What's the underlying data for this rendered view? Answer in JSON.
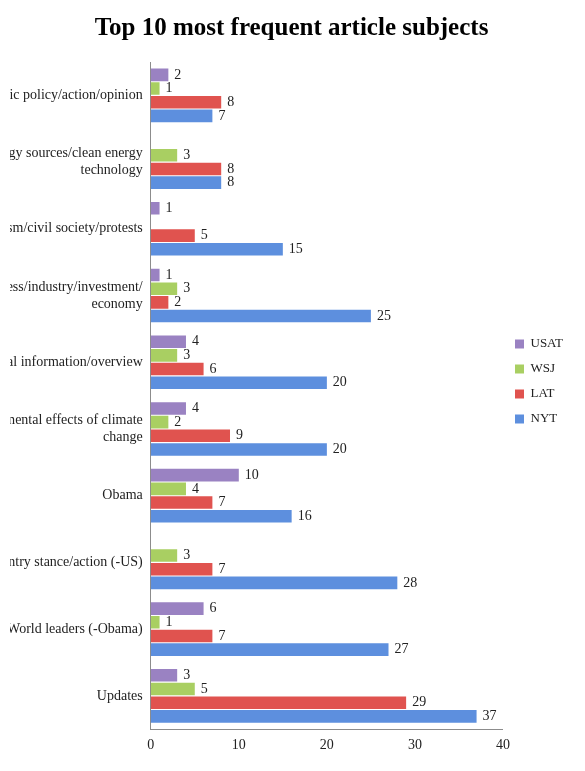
{
  "chart_data": {
    "type": "bar",
    "orientation": "horizontal",
    "title": "Top 10 most frequent article subjects",
    "categories": [
      "US domestic policy/action/opinion",
      "Energy sources/clean energy technology",
      "Activism/civil society/protests",
      "Business/industry/investment/economy",
      "General information/overview",
      "Environmental effects of climate change",
      "Obama",
      "Country stance/action (-US)",
      "World leaders (-Obama)",
      "Updates"
    ],
    "series": [
      {
        "name": "USAT",
        "color": "#9a82c2",
        "values": [
          2,
          null,
          1,
          1,
          4,
          4,
          10,
          null,
          6,
          3
        ]
      },
      {
        "name": "WSJ",
        "color": "#a9cf62",
        "values": [
          1,
          3,
          null,
          3,
          3,
          2,
          4,
          3,
          1,
          5
        ]
      },
      {
        "name": "LAT",
        "color": "#e0534f",
        "values": [
          8,
          8,
          5,
          2,
          6,
          9,
          7,
          7,
          7,
          29
        ]
      },
      {
        "name": "NYT",
        "color": "#5d8fde",
        "values": [
          7,
          8,
          15,
          25,
          20,
          20,
          16,
          28,
          27,
          37
        ]
      }
    ],
    "xlim": [
      0,
      40
    ],
    "xticks": [
      0,
      10,
      20,
      30,
      40
    ],
    "grid": false,
    "legend": "right",
    "data_labels": true
  }
}
